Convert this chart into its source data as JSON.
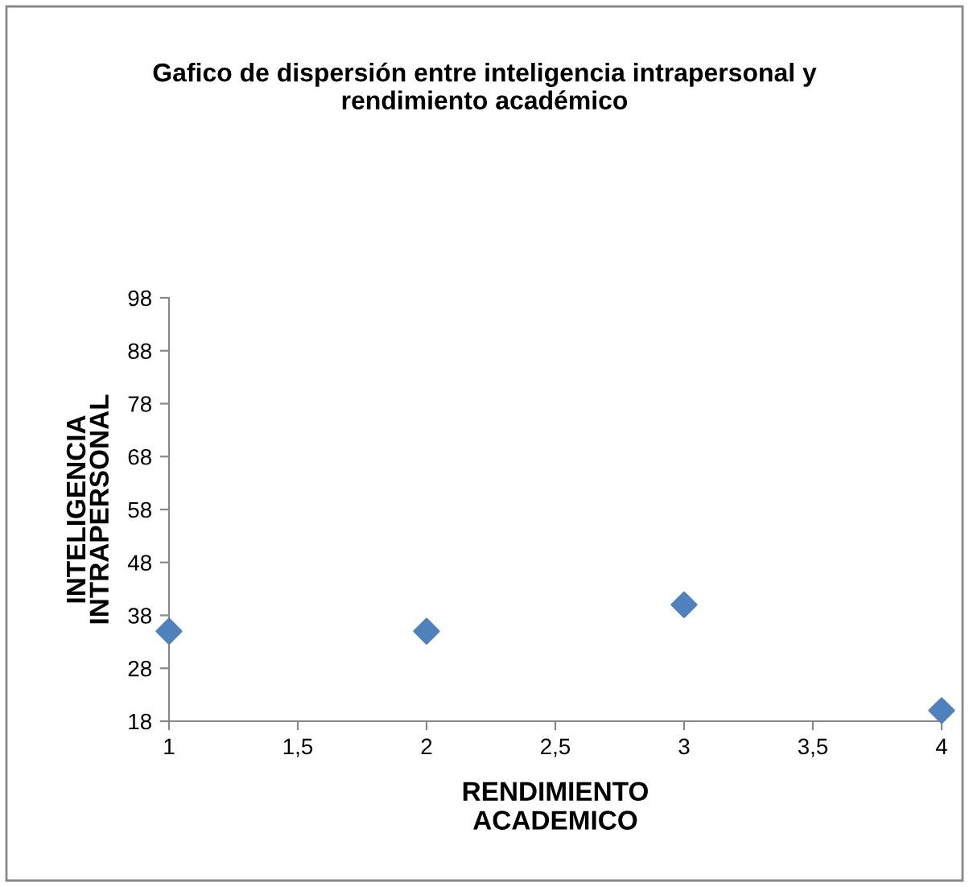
{
  "chart_data": {
    "type": "scatter",
    "title": "Gafico de dispersión entre inteligencia intrapersonal y\nrendimiento académico",
    "xlabel": "RENDIMIENTO\nACADEMICO",
    "ylabel": "INTELIGENCIA\nINTRAPERSONAL",
    "x": [
      1,
      2,
      3,
      4
    ],
    "series": [
      {
        "color": "#4f81bd",
        "values": [
          35,
          35,
          40,
          20
        ]
      }
    ],
    "marker": "diamond",
    "xlim": [
      1,
      4
    ],
    "ylim": [
      18,
      98
    ],
    "xticks": [
      1,
      {
        "value": 1.5,
        "label": "1,5"
      },
      2,
      {
        "value": 2.5,
        "label": "2,5"
      },
      3,
      {
        "value": 3.5,
        "label": "3,5"
      },
      4
    ],
    "yticks": [
      18,
      28,
      38,
      48,
      58,
      68,
      78,
      88,
      98
    ],
    "grid": false,
    "legend": false
  }
}
